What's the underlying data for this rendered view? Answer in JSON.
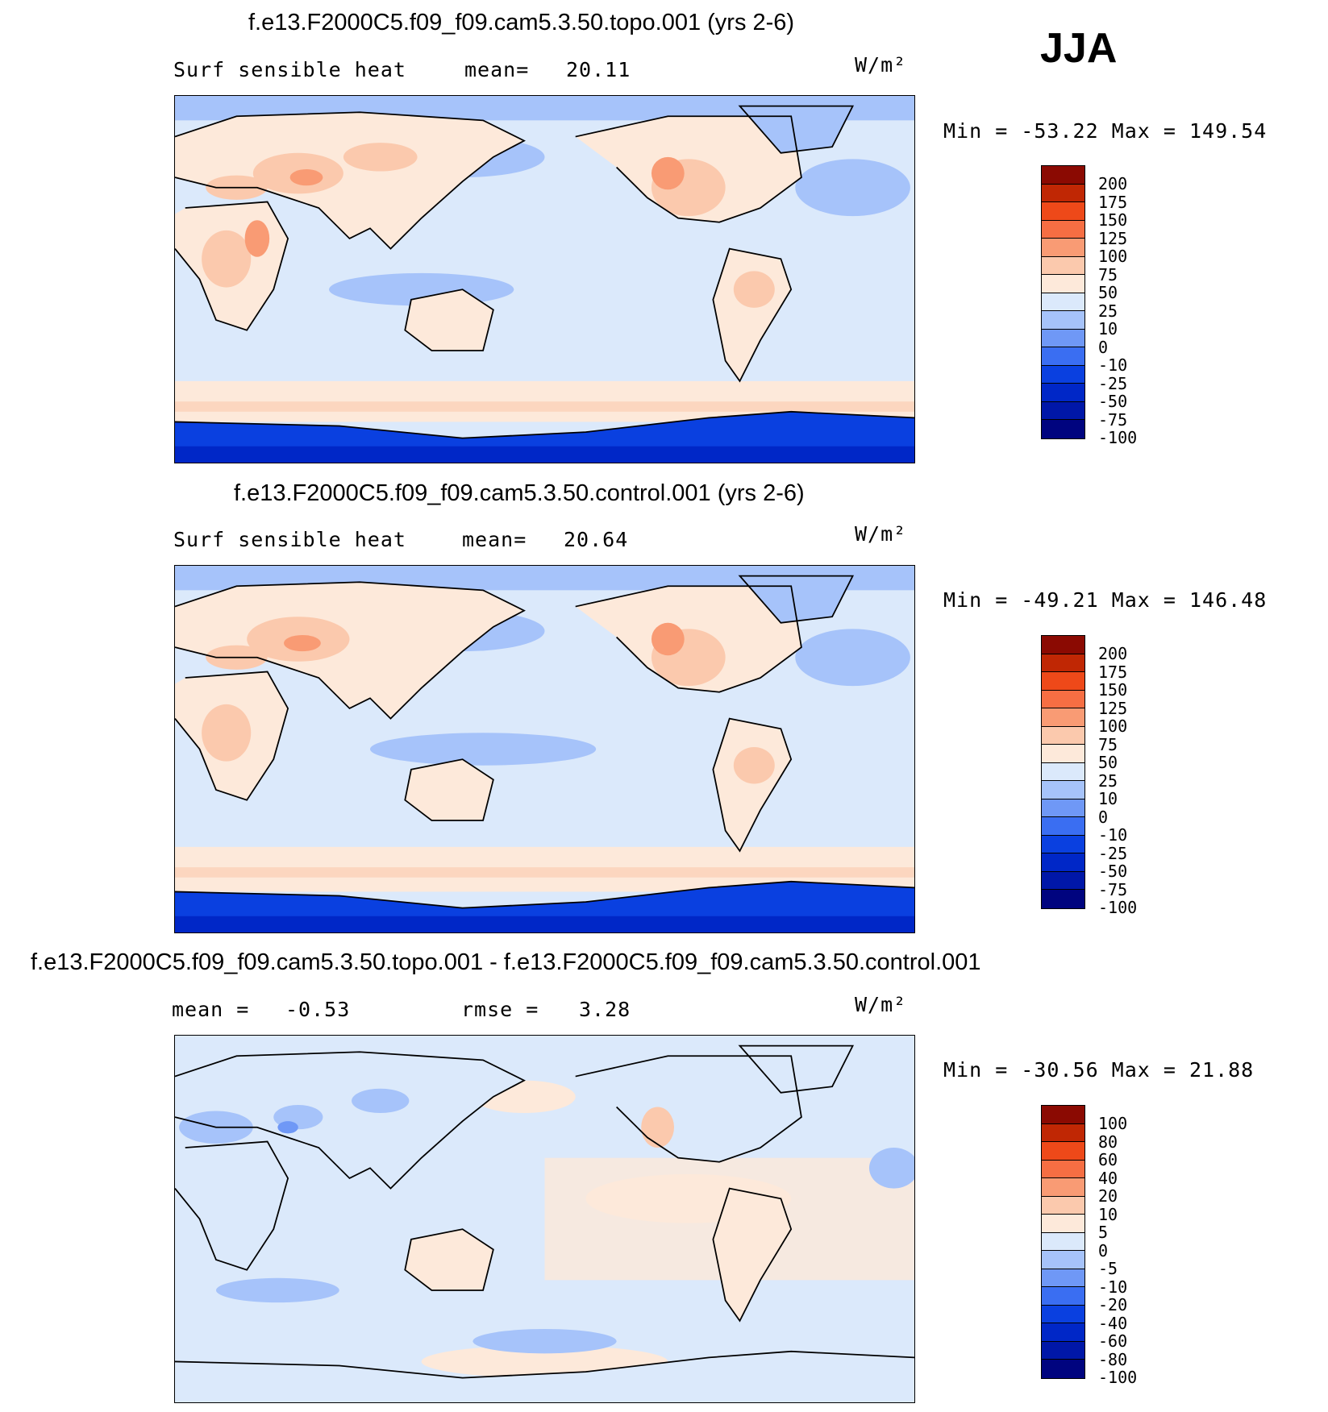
{
  "season": "JJA",
  "units": "W/m²",
  "palette": {
    "full": [
      "#00047f",
      "#0017a8",
      "#0027c7",
      "#0a40e0",
      "#3a6ef2",
      "#6f98f6",
      "#a6c3fa",
      "#dbe9fb",
      "#fde9da",
      "#fbc9ad",
      "#f99b74",
      "#f66e43",
      "#ee4919",
      "#c02704",
      "#8b0a02"
    ]
  },
  "panels": [
    {
      "title": "f.e13.F2000C5.f09_f09.cam5.3.50.topo.001 (yrs 2-6)",
      "left_label": "Surf sensible heat",
      "stat1_label": "mean=",
      "stat1_value": "20.11",
      "stat2_label": "",
      "stat2_value": "",
      "minmax": "Min = -53.22 Max = 149.54",
      "levels": [
        "200",
        "175",
        "150",
        "125",
        "100",
        "75",
        "50",
        "25",
        "10",
        "0",
        "-10",
        "-25",
        "-50",
        "-75",
        "-100"
      ]
    },
    {
      "title": "f.e13.F2000C5.f09_f09.cam5.3.50.control.001 (yrs 2-6)",
      "left_label": "Surf sensible heat",
      "stat1_label": "mean=",
      "stat1_value": "20.64",
      "stat2_label": "",
      "stat2_value": "",
      "minmax": "Min = -49.21 Max = 146.48",
      "levels": [
        "200",
        "175",
        "150",
        "125",
        "100",
        "75",
        "50",
        "25",
        "10",
        "0",
        "-10",
        "-25",
        "-50",
        "-75",
        "-100"
      ]
    },
    {
      "title": "f.e13.F2000C5.f09_f09.cam5.3.50.topo.001 - f.e13.F2000C5.f09_f09.cam5.3.50.control.001",
      "left_label": "",
      "stat1_label": "mean =",
      "stat1_value": "-0.53",
      "stat2_label": "rmse =",
      "stat2_value": "3.28",
      "minmax": "Min = -30.56 Max =  21.88",
      "levels": [
        "100",
        "80",
        "60",
        "40",
        "20",
        "10",
        "5",
        "0",
        "-5",
        "-10",
        "-20",
        "-40",
        "-60",
        "-80",
        "-100"
      ]
    }
  ]
}
